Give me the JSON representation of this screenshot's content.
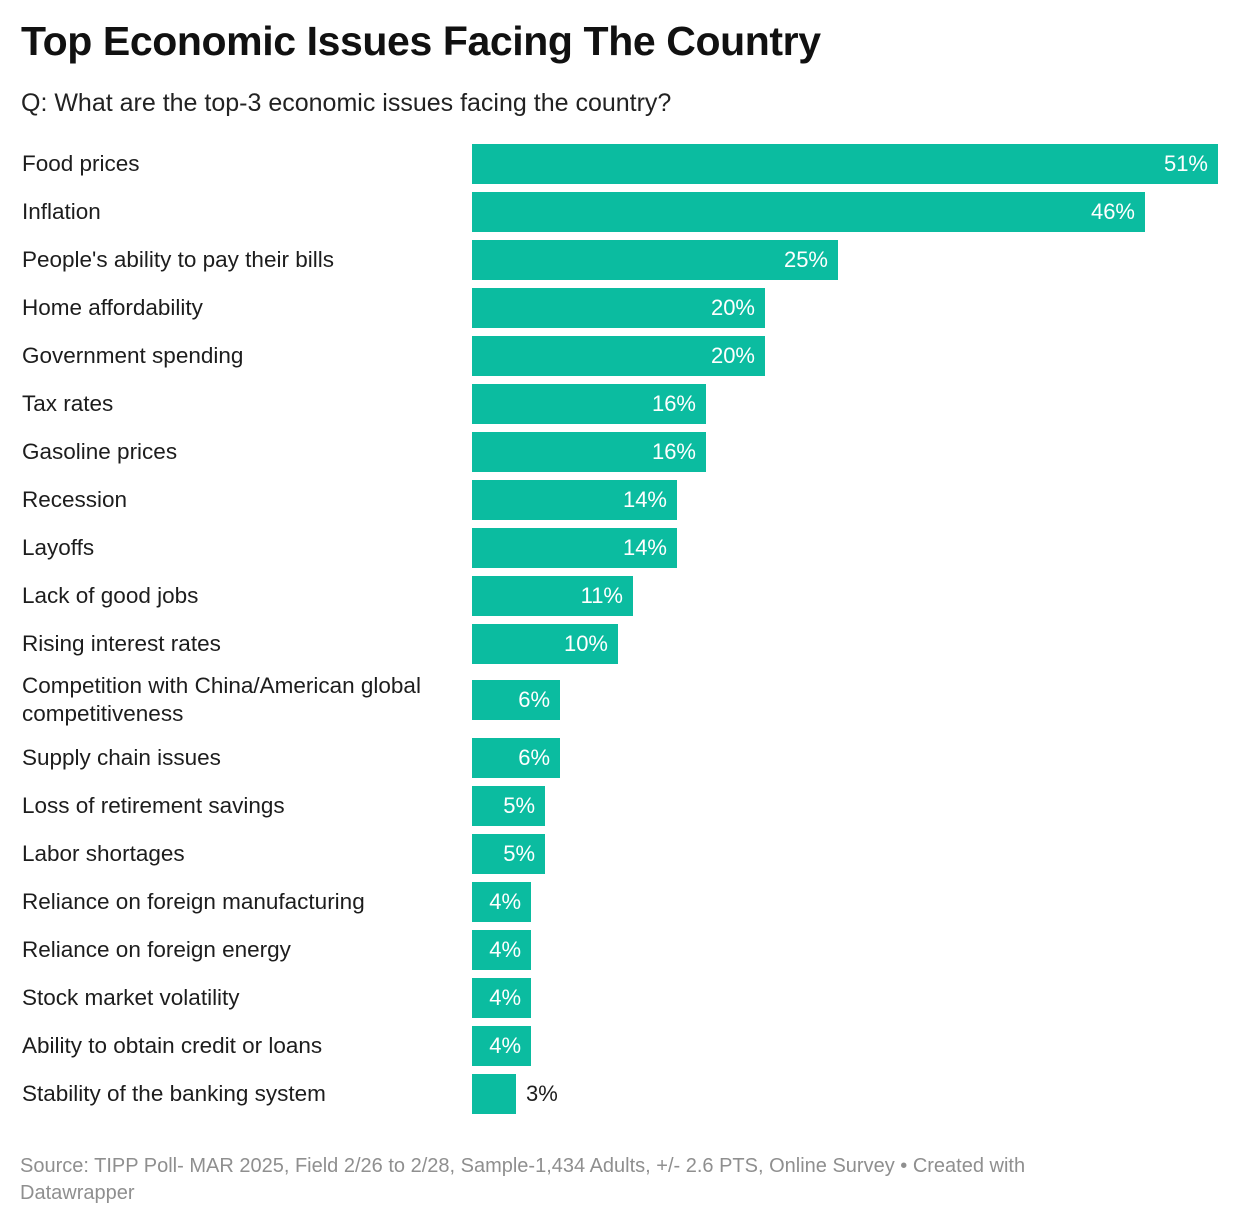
{
  "header": {
    "title": "Top Economic Issues Facing The Country",
    "subtitle": "Q: What are the top-3 economic issues facing the country?"
  },
  "footer": {
    "source": "Source: TIPP Poll- MAR 2025, Field 2/26 to 2/28, Sample-1,434 Adults, +/- 2.6 PTS, Online Survey • Created with Datawrapper"
  },
  "colors": {
    "bar": "#0bbca0"
  },
  "chart_data": {
    "type": "bar",
    "orientation": "horizontal",
    "title": "Top Economic Issues Facing The Country",
    "subtitle": "Q: What are the top-3 economic issues facing the country?",
    "value_suffix": "%",
    "xlim": [
      0,
      51
    ],
    "grid": false,
    "categories": [
      "Food prices",
      "Inflation",
      "People's ability to pay their bills",
      "Home affordability",
      "Government spending",
      "Tax rates",
      "Gasoline prices",
      "Recession",
      "Layoffs",
      "Lack of good jobs",
      "Rising interest rates",
      "Competition with China/American global competitiveness",
      "Supply chain issues",
      "Loss of retirement savings",
      "Labor shortages",
      "Reliance on foreign manufacturing",
      "Reliance on foreign energy",
      "Stock market volatility",
      "Ability to obtain credit or loans",
      "Stability of the banking system"
    ],
    "values": [
      51,
      46,
      25,
      20,
      20,
      16,
      16,
      14,
      14,
      11,
      10,
      6,
      6,
      5,
      5,
      4,
      4,
      4,
      4,
      3
    ],
    "labels": [
      "51%",
      "46%",
      "25%",
      "20%",
      "20%",
      "16%",
      "16%",
      "14%",
      "14%",
      "11%",
      "10%",
      "6%",
      "6%",
      "5%",
      "5%",
      "4%",
      "4%",
      "4%",
      "4%",
      "3%"
    ]
  }
}
